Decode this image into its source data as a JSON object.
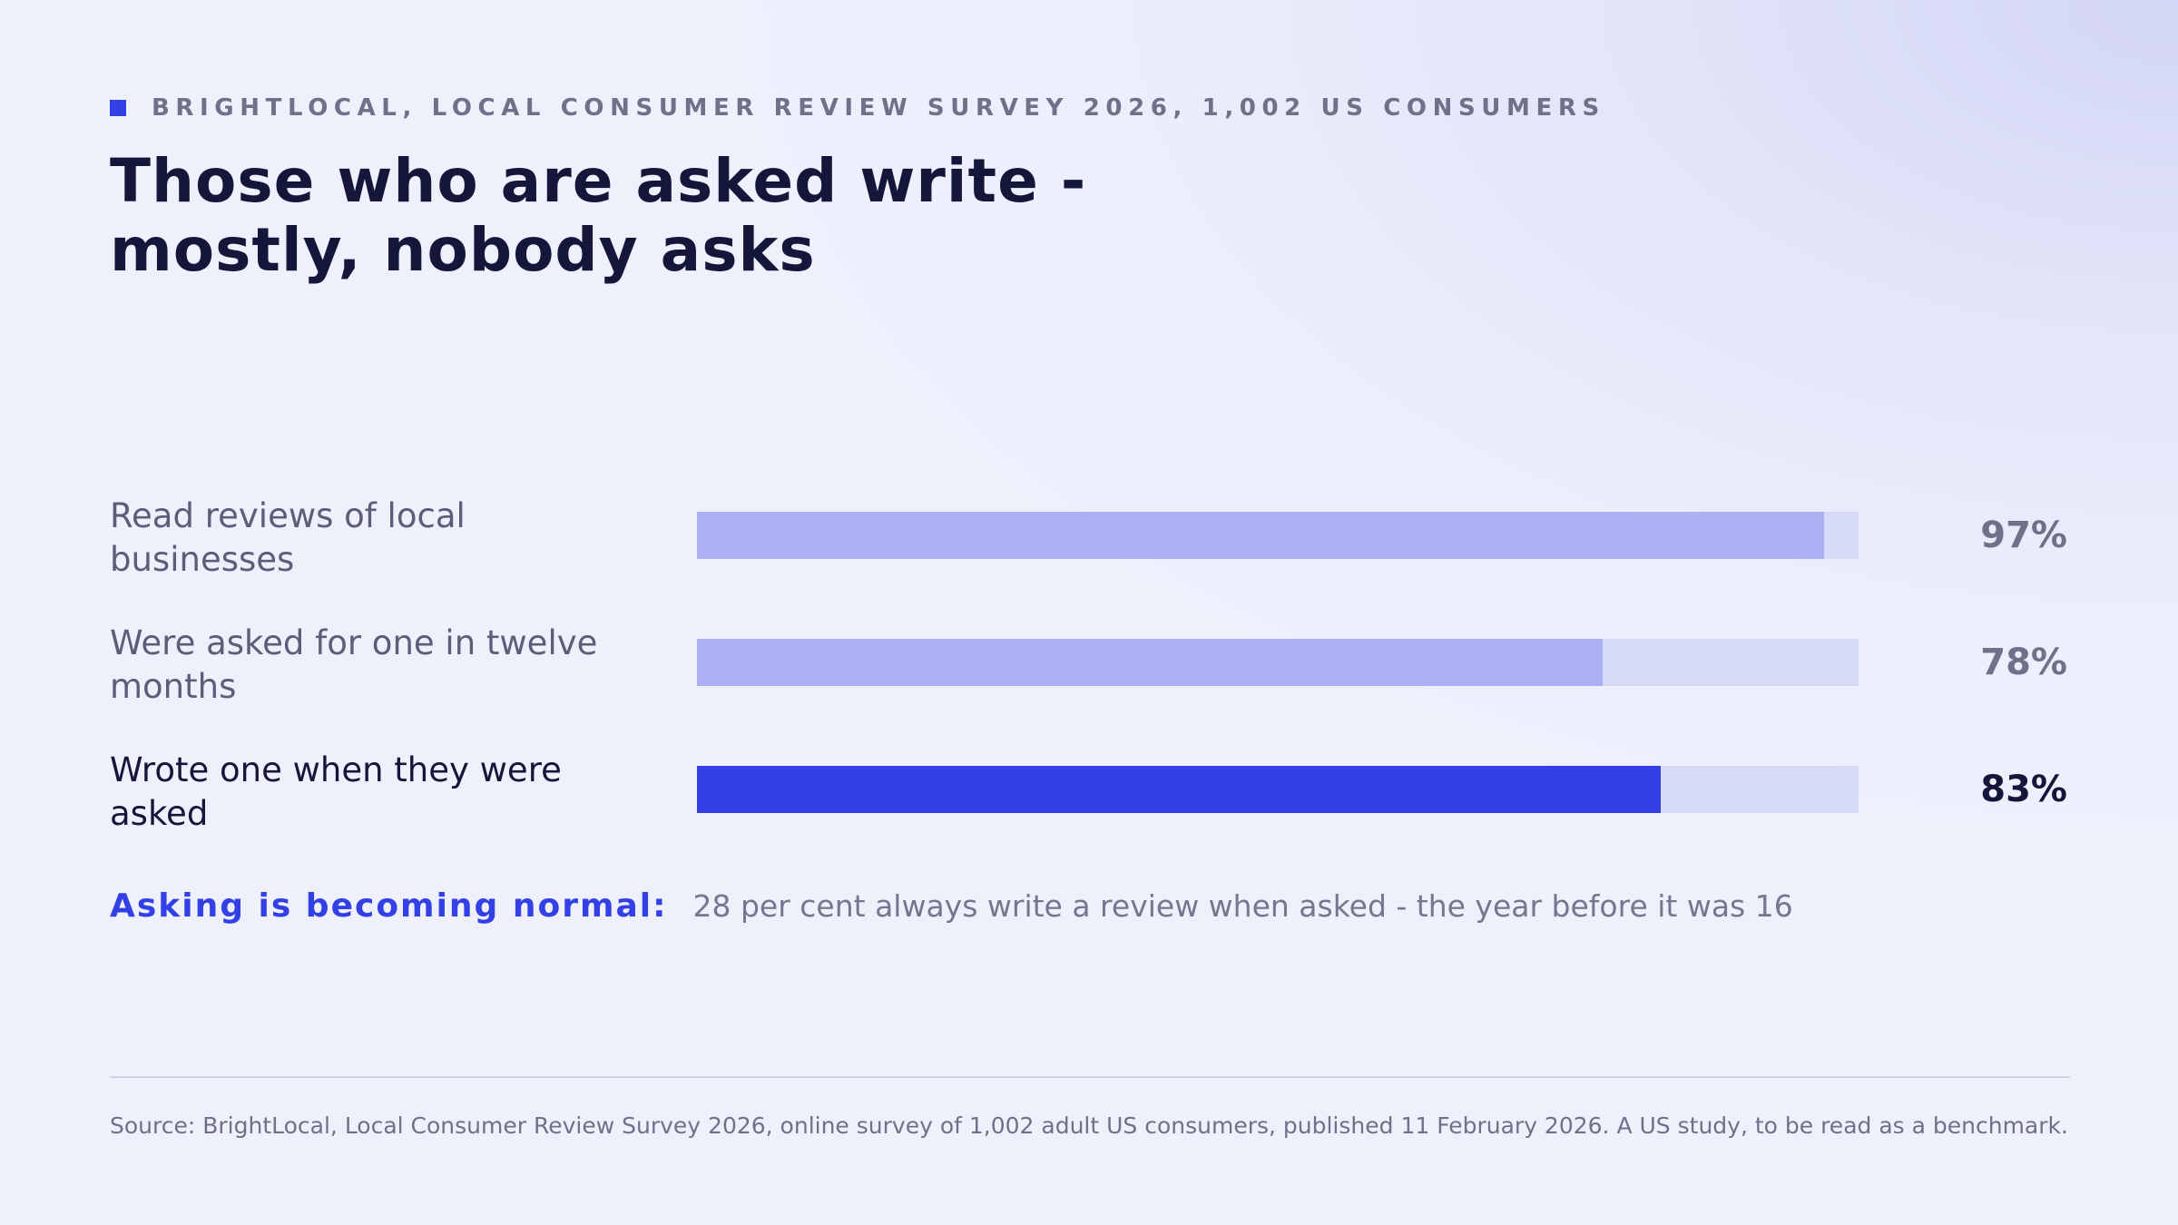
{
  "header": {
    "kicker": "BRIGHTLOCAL, LOCAL CONSUMER REVIEW SURVEY 2026, 1,002 US CONSUMERS",
    "title": "Those who are asked write - mostly, nobody asks"
  },
  "colors": {
    "accent": "#3340e6",
    "bar_light": "#aab0f2",
    "track": "#d6daf6",
    "text_dark": "#15173a",
    "text_muted": "#6e7189"
  },
  "chart_data": {
    "type": "bar",
    "orientation": "horizontal",
    "categories": [
      "Read reviews of local businesses",
      "Were asked for one in twelve months",
      "Wrote one when they were asked"
    ],
    "values": [
      97,
      78,
      83
    ],
    "value_labels": [
      "97%",
      "78%",
      "83%"
    ],
    "highlight_index": 2,
    "xlim": [
      0,
      100
    ],
    "grid": false,
    "legend": "none"
  },
  "callout": {
    "lead": "Asking is becoming normal:",
    "text": "28 per cent always write a review when asked - the year before it was 16"
  },
  "footer": {
    "source": "Source: BrightLocal, Local Consumer Review Survey 2026, online survey of 1,002 adult US consumers, published 11 February 2026. A US study, to be read as a benchmark."
  }
}
